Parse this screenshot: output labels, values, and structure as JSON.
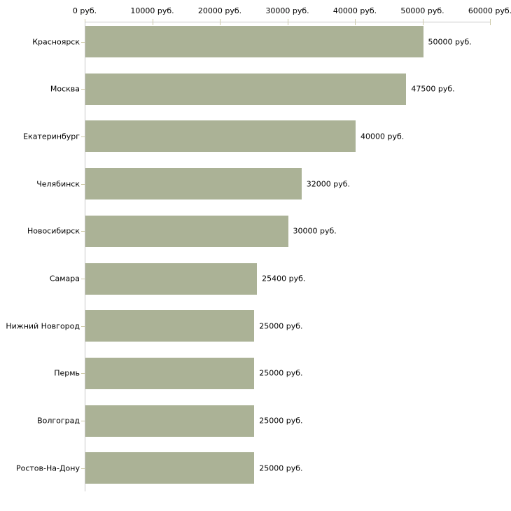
{
  "chart_data": {
    "type": "bar",
    "orientation": "horizontal",
    "title": "",
    "xlabel": "",
    "ylabel": "",
    "grid": false,
    "legend": false,
    "categories": [
      "Красноярск",
      "Москва",
      "Екатеринбург",
      "Челябинск",
      "Новосибирск",
      "Самара",
      "Нижний Новгород",
      "Пермь",
      "Волгоград",
      "Ростов-На-Дону"
    ],
    "values": [
      50000,
      47500,
      40000,
      32000,
      30000,
      25400,
      25000,
      25000,
      25000,
      25000
    ],
    "value_labels": [
      "50000 руб.",
      "47500 руб.",
      "40000 руб.",
      "32000 руб.",
      "30000 руб.",
      "25400 руб.",
      "25000 руб.",
      "25000 руб.",
      "25000 руб.",
      "25000 руб."
    ],
    "x_axis": {
      "position": "top",
      "min": 0,
      "max": 60000,
      "ticks": [
        0,
        10000,
        20000,
        30000,
        40000,
        50000,
        60000
      ],
      "tick_labels": [
        "0 руб.",
        "10000 руб.",
        "20000 руб.",
        "30000 руб.",
        "40000 руб.",
        "50000 руб.",
        "60000 руб."
      ]
    },
    "colors": {
      "bar_fill": "#abb296",
      "axis_line": "#c6c6c6",
      "tick_mark": "#cdc9a5",
      "text": "#000000",
      "background": "#ffffff"
    }
  }
}
